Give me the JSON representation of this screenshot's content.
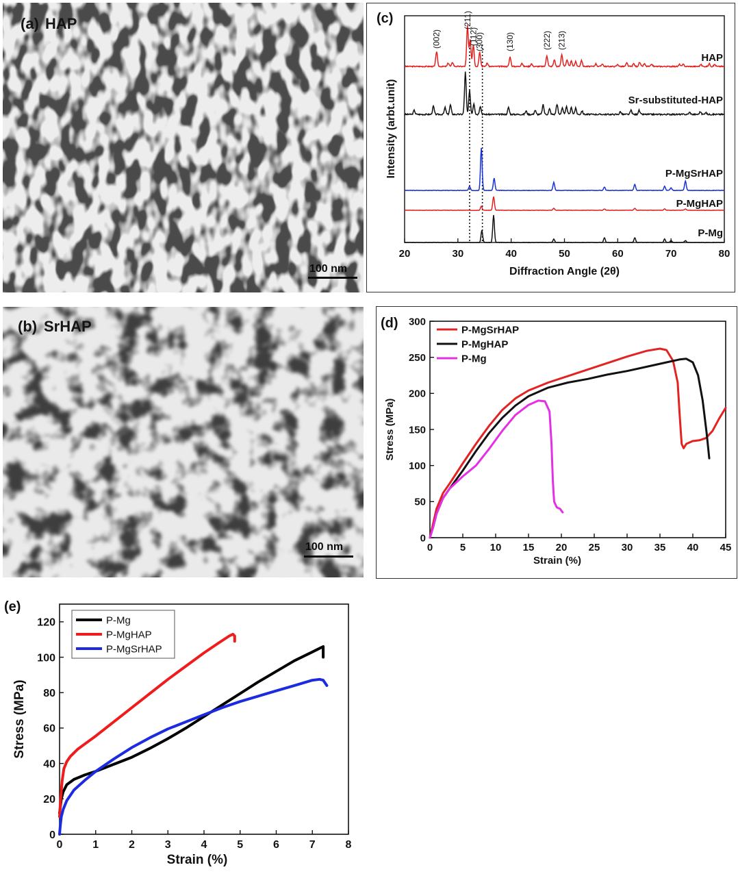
{
  "panel_a": {
    "letter": "(a)",
    "label": "HAP",
    "scale_bar": "100 nm"
  },
  "panel_b": {
    "letter": "(b)",
    "label": "SrHAP",
    "scale_bar": "100 nm"
  },
  "chart_data": [
    {
      "panel": "(c)",
      "type": "line",
      "xlabel": "Diffraction Angle (2θ)",
      "ylabel": "Intensity (arbt.unit)",
      "xlim": [
        20,
        80
      ],
      "xticks": [
        20,
        30,
        40,
        50,
        60,
        70,
        80
      ],
      "grid": false,
      "dashed_reference_lines_x": [
        32.2,
        34.6
      ],
      "series": [
        {
          "name": "HAP",
          "color": "#e0201d",
          "peaks": [
            [
              26.0,
              22
            ],
            [
              28.2,
              5
            ],
            [
              29.0,
              6
            ],
            [
              31.8,
              60
            ],
            [
              32.3,
              40
            ],
            [
              32.9,
              32
            ],
            [
              34.1,
              22
            ],
            [
              35.5,
              5
            ],
            [
              39.8,
              14
            ],
            [
              42.0,
              5
            ],
            [
              43.8,
              4
            ],
            [
              46.7,
              16
            ],
            [
              48.1,
              10
            ],
            [
              49.5,
              18
            ],
            [
              50.5,
              10
            ],
            [
              51.3,
              8
            ],
            [
              52.1,
              7
            ],
            [
              53.2,
              9
            ],
            [
              55.9,
              4
            ],
            [
              57.1,
              4
            ],
            [
              60.0,
              3
            ],
            [
              61.7,
              5
            ],
            [
              63.0,
              4
            ],
            [
              64.1,
              6
            ],
            [
              65.0,
              4
            ],
            [
              66.4,
              3
            ],
            [
              71.6,
              3
            ],
            [
              72.3,
              3
            ],
            [
              75.6,
              3
            ],
            [
              77.2,
              4
            ],
            [
              78.2,
              3
            ]
          ],
          "annotations": [
            "(002)",
            "(211)",
            "(112)",
            "(300)",
            "(130)",
            "(222)",
            "(213)"
          ]
        },
        {
          "name": "Sr-substituted-HAP",
          "color": "#111111",
          "peaks": [
            [
              21.8,
              6
            ],
            [
              25.4,
              12
            ],
            [
              27.6,
              10
            ],
            [
              28.6,
              14
            ],
            [
              31.4,
              62
            ],
            [
              32.2,
              35
            ],
            [
              33.0,
              16
            ],
            [
              34.2,
              12
            ],
            [
              39.5,
              10
            ],
            [
              42.8,
              5
            ],
            [
              44.5,
              6
            ],
            [
              46.0,
              14
            ],
            [
              47.2,
              8
            ],
            [
              48.6,
              15
            ],
            [
              49.6,
              10
            ],
            [
              50.4,
              11
            ],
            [
              51.3,
              10
            ],
            [
              52.1,
              9
            ],
            [
              53.3,
              5
            ],
            [
              60.5,
              4
            ],
            [
              62.5,
              6
            ],
            [
              64.0,
              6
            ],
            [
              73.5,
              3
            ],
            [
              75.5,
              4
            ],
            [
              76.5,
              3
            ]
          ]
        },
        {
          "name": "P-MgSrHAP",
          "color": "#1630d6",
          "peaks": [
            [
              32.2,
              6
            ],
            [
              34.4,
              62
            ],
            [
              36.8,
              18
            ],
            [
              48.0,
              12
            ],
            [
              57.5,
              5
            ],
            [
              63.2,
              9
            ],
            [
              68.8,
              6
            ],
            [
              70.0,
              4
            ],
            [
              72.7,
              14
            ]
          ]
        },
        {
          "name": "P-MgHAP",
          "color": "#e0201d",
          "peaks": [
            [
              34.4,
              6
            ],
            [
              36.7,
              20
            ],
            [
              48.0,
              3
            ],
            [
              57.5,
              2
            ],
            [
              63.2,
              3
            ],
            [
              68.8,
              2
            ],
            [
              72.7,
              2
            ]
          ]
        },
        {
          "name": "P-Mg",
          "color": "#111111",
          "peaks": [
            [
              34.5,
              18
            ],
            [
              36.7,
              40
            ],
            [
              48.0,
              5
            ],
            [
              57.5,
              7
            ],
            [
              63.2,
              7
            ],
            [
              68.8,
              5
            ],
            [
              70.0,
              3
            ],
            [
              72.7,
              3
            ]
          ]
        }
      ]
    },
    {
      "panel": "(d)",
      "type": "line",
      "xlabel": "Strain (%)",
      "ylabel": "Stress (MPa)",
      "xlim": [
        0,
        45
      ],
      "ylim": [
        0,
        300
      ],
      "xticks": [
        0,
        5,
        10,
        15,
        20,
        25,
        30,
        35,
        40,
        45
      ],
      "yticks": [
        0,
        50,
        100,
        150,
        200,
        250,
        300
      ],
      "grid": false,
      "legend_position": "top-left",
      "series": [
        {
          "name": "P-MgSrHAP",
          "color": "#e32222",
          "x": [
            0,
            0.5,
            1,
            2,
            3,
            5,
            7,
            9,
            11,
            13,
            15,
            18,
            21,
            24,
            27,
            30,
            33,
            35,
            36,
            37,
            37.7,
            38.0,
            38.3,
            38.6,
            39,
            40,
            41,
            42,
            43,
            44,
            45
          ],
          "y": [
            0,
            20,
            40,
            62,
            75,
            103,
            130,
            155,
            177,
            193,
            204,
            215,
            224,
            233,
            242,
            251,
            259,
            262,
            260,
            245,
            215,
            170,
            130,
            124,
            130,
            134,
            135,
            138,
            148,
            165,
            180
          ]
        },
        {
          "name": "P-MgHAP",
          "color": "#111111",
          "x": [
            0,
            0.5,
            1,
            2,
            3,
            5,
            7,
            9,
            11,
            13,
            15,
            18,
            21,
            24,
            27,
            30,
            33,
            36,
            38,
            39,
            40,
            40.8,
            41.5,
            42.1,
            42.5
          ],
          "y": [
            0,
            15,
            33,
            55,
            68,
            93,
            120,
            145,
            166,
            183,
            196,
            208,
            215,
            220,
            226,
            231,
            237,
            243,
            247,
            248,
            243,
            225,
            190,
            145,
            110
          ]
        },
        {
          "name": "P-Mg",
          "color": "#e52fe5",
          "x": [
            0,
            0.5,
            1,
            2,
            3,
            5,
            7,
            9,
            11,
            13,
            15,
            16.5,
            17.5,
            18.2,
            18.5,
            18.7,
            18.9,
            19.3,
            19.8,
            20.2
          ],
          "y": [
            0,
            15,
            33,
            55,
            68,
            85,
            100,
            123,
            148,
            170,
            184,
            190,
            189,
            175,
            130,
            80,
            50,
            42,
            40,
            35
          ]
        }
      ]
    },
    {
      "panel": "(e)",
      "type": "line",
      "xlabel": "Strain (%)",
      "ylabel": "Stress (MPa)",
      "xlim": [
        0,
        8
      ],
      "ylim": [
        0,
        130
      ],
      "xticks": [
        0,
        1,
        2,
        3,
        4,
        5,
        6,
        7,
        8
      ],
      "yticks": [
        0,
        20,
        40,
        60,
        80,
        100,
        120
      ],
      "grid": false,
      "legend_position": "top-left",
      "series": [
        {
          "name": "P-Mg",
          "color": "#000000",
          "x": [
            0,
            0.05,
            0.1,
            0.2,
            0.4,
            0.7,
            1.0,
            1.5,
            2.0,
            2.5,
            3.0,
            3.5,
            4.0,
            4.5,
            5.0,
            5.5,
            6.0,
            6.5,
            7.0,
            7.2,
            7.3,
            7.3
          ],
          "y": [
            12,
            20,
            24,
            28,
            31,
            33.5,
            35.5,
            39.5,
            43.5,
            48.5,
            54,
            60,
            66.5,
            73,
            79.5,
            86,
            92,
            98,
            103,
            105,
            106,
            100
          ]
        },
        {
          "name": "P-MgHAP",
          "color": "#ee1c1c",
          "x": [
            0,
            0.03,
            0.07,
            0.12,
            0.2,
            0.3,
            0.5,
            0.8,
            1.0,
            1.5,
            2.0,
            2.5,
            3.0,
            3.5,
            4.0,
            4.4,
            4.7,
            4.8,
            4.85,
            4.85
          ],
          "y": [
            10,
            20,
            30,
            37,
            41,
            44,
            48,
            52.5,
            55.5,
            63.5,
            71.5,
            79.5,
            87.5,
            95,
            102.5,
            108,
            112,
            113,
            112,
            109
          ]
        },
        {
          "name": "P-MgSrHAP",
          "color": "#1d2be0",
          "x": [
            0,
            0.02,
            0.05,
            0.1,
            0.2,
            0.4,
            0.7,
            1.0,
            1.5,
            2.0,
            2.5,
            3.0,
            3.5,
            4.0,
            4.5,
            5.0,
            5.5,
            6.0,
            6.5,
            7.0,
            7.2,
            7.3,
            7.4
          ],
          "y": [
            0,
            5,
            10,
            14,
            19,
            25,
            30.5,
            35.5,
            42.5,
            49,
            54.5,
            59.5,
            63.5,
            67.5,
            71.5,
            75,
            78,
            81,
            84,
            87,
            87.5,
            87,
            84
          ]
        }
      ]
    }
  ]
}
